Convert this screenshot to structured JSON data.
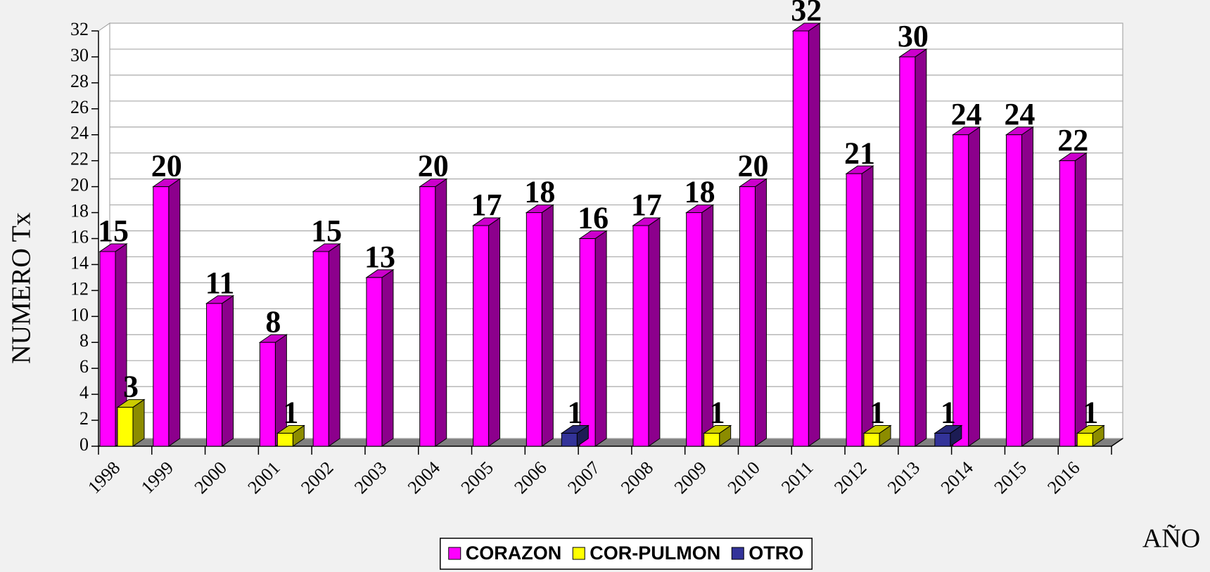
{
  "chart_data": {
    "type": "bar3d",
    "y_label": "NUMERO Tx",
    "x_label": "AÑO",
    "categories": [
      "1998",
      "1999",
      "2000",
      "2001",
      "2002",
      "2003",
      "2004",
      "2005",
      "2006",
      "2007",
      "2008",
      "2009",
      "2010",
      "2011",
      "2012",
      "2013",
      "2014",
      "2015",
      "2016"
    ],
    "series": [
      {
        "name": "CORAZON",
        "color": "#ff00ff",
        "values": [
          15,
          20,
          11,
          8,
          15,
          13,
          20,
          17,
          18,
          16,
          17,
          18,
          20,
          32,
          21,
          30,
          24,
          24,
          22
        ]
      },
      {
        "name": "COR-PULMON",
        "color": "#ffff00",
        "values": [
          3,
          null,
          null,
          1,
          null,
          null,
          null,
          null,
          null,
          null,
          null,
          1,
          null,
          null,
          1,
          null,
          null,
          null,
          1
        ]
      },
      {
        "name": "OTRO",
        "color": "#333399",
        "values": [
          null,
          null,
          null,
          null,
          null,
          null,
          null,
          null,
          1,
          null,
          null,
          null,
          null,
          null,
          null,
          1,
          null,
          null,
          null
        ]
      }
    ],
    "ylim": [
      0,
      32
    ],
    "yticks": [
      0,
      2,
      4,
      6,
      8,
      10,
      12,
      14,
      16,
      18,
      20,
      22,
      24,
      26,
      28,
      30,
      32
    ],
    "grid": true,
    "legend": "bottom"
  }
}
